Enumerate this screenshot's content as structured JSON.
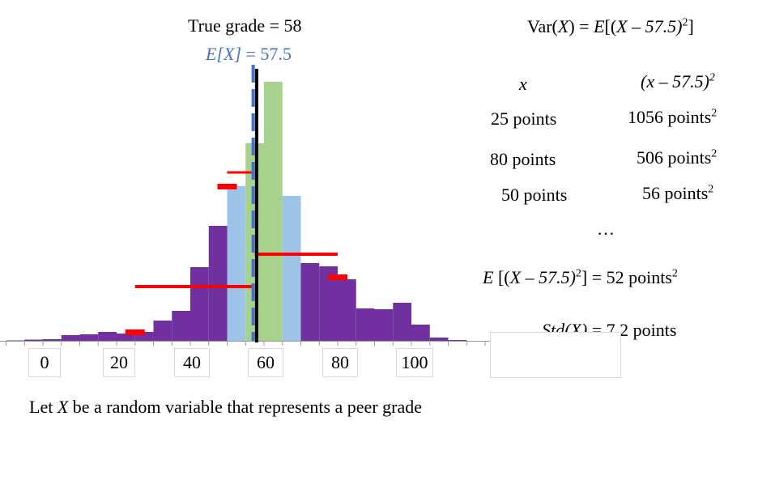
{
  "title": "True grade = 58",
  "mean_label": {
    "prefix": "E[X]",
    "value": "= 57.5"
  },
  "formula": {
    "lhs": "Var(",
    "var": "X",
    "eq": ") = ",
    "E": "E",
    "rest": "[(",
    "x": "X",
    "minus": " – 57.5)",
    "sq": "2",
    "close": "]"
  },
  "table": {
    "col1_header": "x",
    "col2_header": "(x – 57.5)",
    "col2_sup": "2",
    "rows": [
      {
        "x": "25 points",
        "sq": "1056 points",
        "sup": "2"
      },
      {
        "x": "80 points",
        "sq": "506 points",
        "sup": "2"
      },
      {
        "x": "50 points",
        "sq": "56 points",
        "sup": "2"
      }
    ],
    "ellipsis": "…"
  },
  "expectation": {
    "E": "E",
    "body": " [(",
    "x": "X",
    "rest": " – 57.5)",
    "sup": "2",
    "tail": "] = 52 points",
    "sup2": "2"
  },
  "std": {
    "lhs": "Std(X)",
    "rhs": " = 7.2 points"
  },
  "caption": {
    "pre": "Let ",
    "var": "X",
    "post": " be a random variable that represents a peer grade"
  },
  "colors": {
    "purple": "#7030a0",
    "lightblue": "#9dc3e6",
    "green": "#a9d18e",
    "red": "#ff0000",
    "mean": "#4472c4",
    "true": "#000000"
  },
  "chart_data": {
    "type": "bar",
    "xlim": [
      -10,
      125
    ],
    "ticks": [
      0,
      20,
      40,
      60,
      80,
      100
    ],
    "bin_width": 5,
    "true_grade": 58,
    "mean": 57.5,
    "bins": [
      {
        "x": -7.5,
        "value": 0.5,
        "color": "purple"
      },
      {
        "x": -2.5,
        "value": 1.5,
        "color": "purple"
      },
      {
        "x": 2.5,
        "value": 2,
        "color": "purple"
      },
      {
        "x": 7.5,
        "value": 7,
        "color": "purple"
      },
      {
        "x": 12.5,
        "value": 8,
        "color": "purple"
      },
      {
        "x": 17.5,
        "value": 11,
        "color": "purple"
      },
      {
        "x": 22.5,
        "value": 9,
        "color": "purple"
      },
      {
        "x": 27.5,
        "value": 11,
        "color": "purple"
      },
      {
        "x": 32.5,
        "value": 25,
        "color": "purple"
      },
      {
        "x": 37.5,
        "value": 37,
        "color": "purple"
      },
      {
        "x": 42.5,
        "value": 91,
        "color": "purple"
      },
      {
        "x": 47.5,
        "value": 142,
        "color": "purple"
      },
      {
        "x": 52.5,
        "value": 191,
        "color": "lightblue"
      },
      {
        "x": 57.5,
        "value": 244,
        "color": "green"
      },
      {
        "x": 62.5,
        "value": 320,
        "color": "green"
      },
      {
        "x": 67.5,
        "value": 179,
        "color": "lightblue"
      },
      {
        "x": 72.5,
        "value": 96,
        "color": "purple"
      },
      {
        "x": 77.5,
        "value": 92,
        "color": "purple"
      },
      {
        "x": 82.5,
        "value": 76,
        "color": "purple"
      },
      {
        "x": 87.5,
        "value": 40,
        "color": "purple"
      },
      {
        "x": 92.5,
        "value": 39,
        "color": "purple"
      },
      {
        "x": 97.5,
        "value": 47,
        "color": "purple"
      },
      {
        "x": 102.5,
        "value": 20,
        "color": "purple"
      },
      {
        "x": 107.5,
        "value": 4,
        "color": "purple"
      },
      {
        "x": 112.5,
        "value": 1,
        "color": "purple"
      }
    ],
    "deviation_lines": [
      {
        "from": 57.5,
        "to": 25,
        "y": 67,
        "thickness": 4
      },
      {
        "from": 57.5,
        "to": 80,
        "y": 107,
        "thickness": 4
      },
      {
        "from": 57.5,
        "to": 50,
        "y": 208,
        "thickness": 3
      }
    ],
    "red_markers": [
      {
        "x": 25,
        "y": 11
      },
      {
        "x": 50,
        "y": 191
      },
      {
        "x": 80,
        "y": 79
      }
    ]
  }
}
